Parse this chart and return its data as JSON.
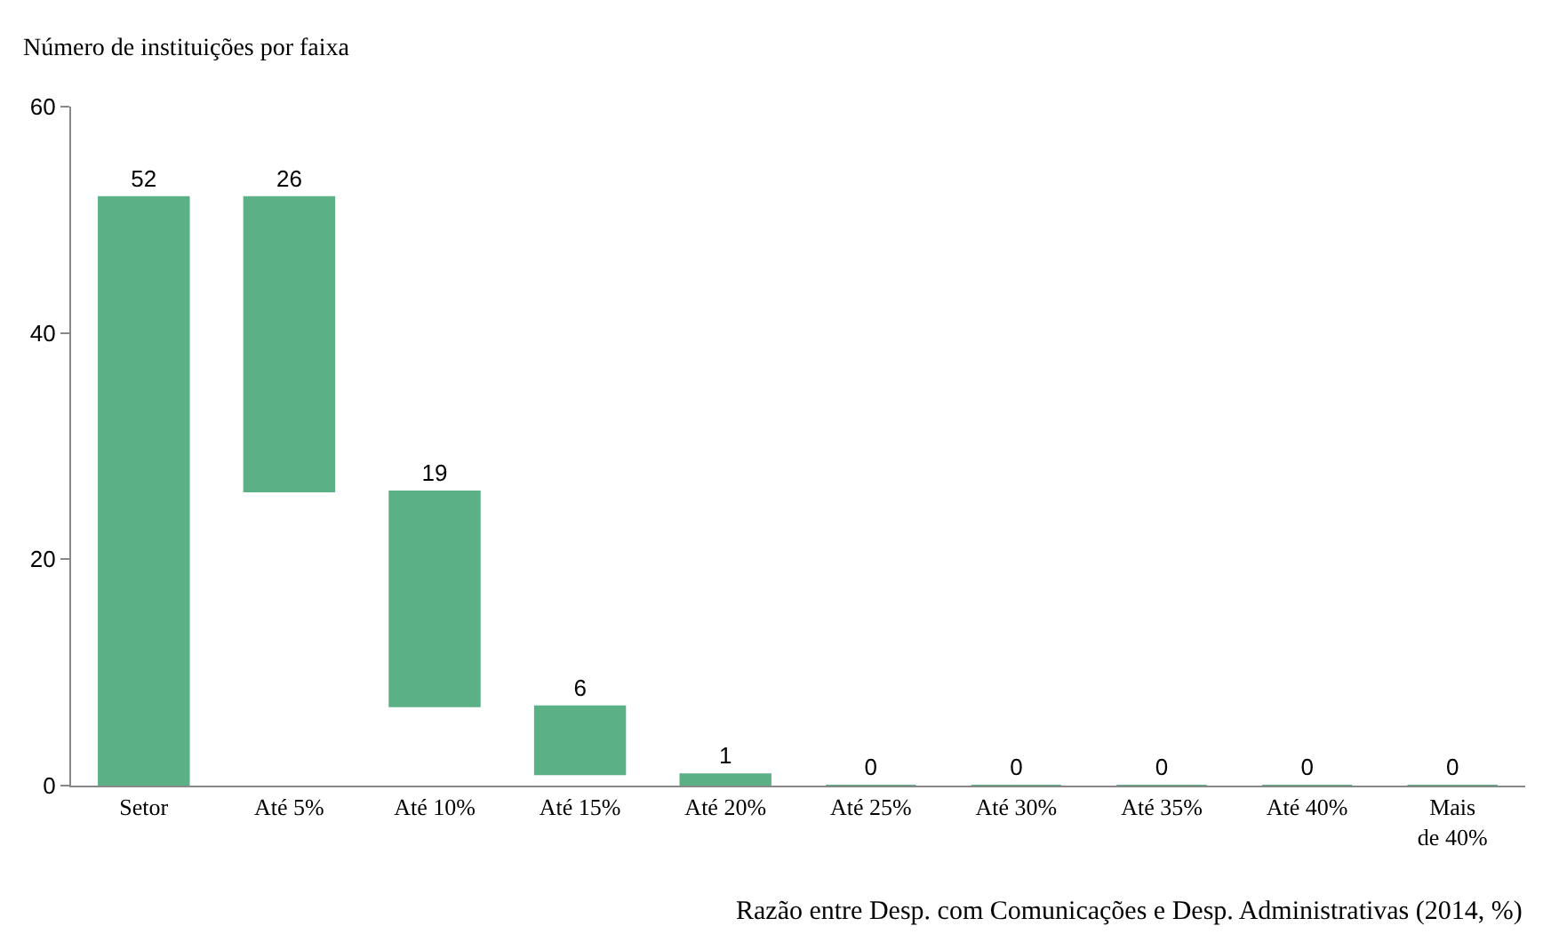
{
  "chart_data": {
    "type": "bar",
    "ylabel": "Número de instituições por faixa",
    "xlabel": "Razão entre Desp. com Comunicações e Desp. Administrativas (2014, %)",
    "categories": [
      "Setor",
      "Até 5%",
      "Até 10%",
      "Até 15%",
      "Até 20%",
      "Até 25%",
      "Até 30%",
      "Até 35%",
      "Até 40%",
      "Mais de 40%"
    ],
    "values": [
      52,
      26,
      19,
      6,
      1,
      0,
      0,
      0,
      0,
      0
    ],
    "base": [
      0,
      26,
      7,
      1,
      0,
      0,
      0,
      0,
      0,
      0
    ],
    "color": "#5bb185",
    "ylim": [
      0,
      60
    ],
    "yticks": [
      0,
      20,
      40,
      60
    ],
    "data_labels": true,
    "legend": false
  }
}
